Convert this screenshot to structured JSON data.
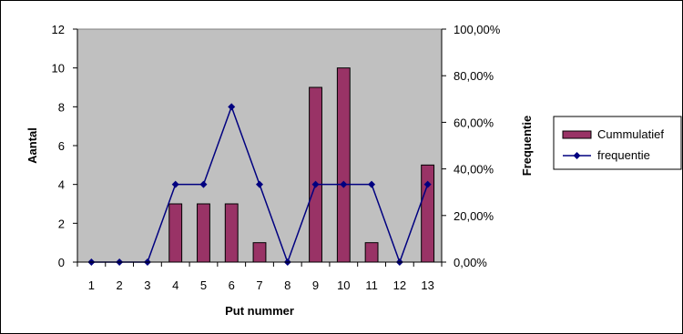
{
  "chart_data": {
    "type": "bar",
    "categories": [
      "1",
      "2",
      "3",
      "4",
      "5",
      "6",
      "7",
      "8",
      "9",
      "10",
      "11",
      "12",
      "13"
    ],
    "series": [
      {
        "name": "Cummulatief",
        "type": "bar",
        "axis": "left",
        "values": [
          0,
          0,
          0,
          3,
          3,
          3,
          1,
          0,
          9,
          10,
          1,
          0,
          5
        ]
      },
      {
        "name": "frequentie",
        "type": "line",
        "axis": "right",
        "values": [
          0,
          0,
          0,
          33.33,
          33.33,
          66.67,
          33.33,
          0,
          33.33,
          33.33,
          33.33,
          0,
          33.33
        ]
      }
    ],
    "xlabel": "Put nummer",
    "ylabel": "Aantal",
    "ylabel_right": "Frequentie",
    "ylim": [
      0,
      12
    ],
    "ylim_right": [
      0,
      100
    ],
    "yticks": [
      "0",
      "2",
      "4",
      "6",
      "8",
      "10",
      "12"
    ],
    "yticks_right": [
      "0,00%",
      "20,00%",
      "40,00%",
      "60,00%",
      "80,00%",
      "100,00%"
    ],
    "plot_background": "#c0c0c0",
    "bar_color": "#993366",
    "line_color": "#000080",
    "legend_position": "right",
    "grid": false
  }
}
